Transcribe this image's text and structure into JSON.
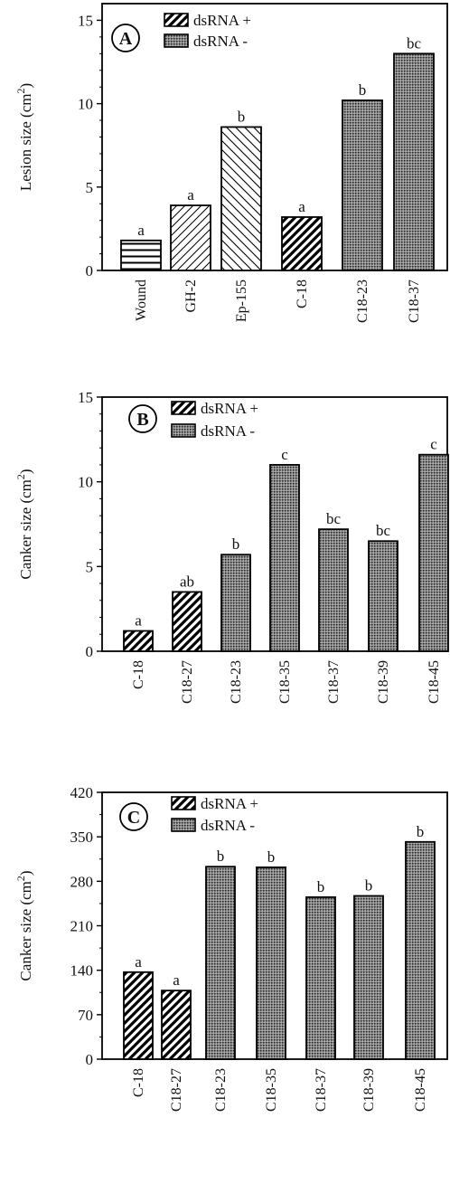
{
  "patterns": {
    "wound": "horizontal-stripes",
    "light_diagonal": "light-diagonal-hatch",
    "back_diagonal": "back-diagonal-hatch",
    "dsrna_plus": "bold-diagonal-hatch",
    "dsrna_minus": "gray-dot-stipple"
  },
  "chart_data": [
    {
      "panel": "A",
      "type": "bar",
      "ylabel": "Lesion size (cm2)",
      "ylim": [
        0,
        16
      ],
      "yticks": [
        0,
        5,
        10,
        15
      ],
      "legend": {
        "placement": "top-left",
        "entries": [
          {
            "label": "dsRNA +",
            "pattern": "dsrna_plus"
          },
          {
            "label": "dsRNA -",
            "pattern": "dsrna_minus"
          }
        ]
      },
      "categories": [
        "Wound",
        "GH-2",
        "Ep-155",
        "C-18",
        "C18-23",
        "C18-37"
      ],
      "values": [
        1.8,
        3.9,
        8.6,
        3.2,
        10.2,
        13.0
      ],
      "labels": [
        "a",
        "a",
        "b",
        "a",
        "b",
        "bc"
      ],
      "patterns": [
        "wound",
        "light_diagonal",
        "back_diagonal",
        "dsrna_plus",
        "dsrna_minus",
        "dsrna_minus"
      ]
    },
    {
      "panel": "B",
      "type": "bar",
      "ylabel": "Canker size  (cm2)",
      "ylim": [
        0,
        15
      ],
      "yticks": [
        0,
        5,
        10,
        15
      ],
      "legend": {
        "placement": "top-left",
        "entries": [
          {
            "label": "dsRNA +",
            "pattern": "dsrna_plus"
          },
          {
            "label": "dsRNA -",
            "pattern": "dsrna_minus"
          }
        ]
      },
      "categories": [
        "C-18",
        "C18-27",
        "C18-23",
        "C18-35",
        "C18-37",
        "C18-39",
        "C18-45"
      ],
      "values": [
        1.2,
        3.5,
        5.7,
        11.0,
        7.2,
        6.5,
        11.6
      ],
      "labels": [
        "a",
        "ab",
        "b",
        "c",
        "bc",
        "bc",
        "c"
      ],
      "patterns": [
        "dsrna_plus",
        "dsrna_plus",
        "dsrna_minus",
        "dsrna_minus",
        "dsrna_minus",
        "dsrna_minus",
        "dsrna_minus"
      ]
    },
    {
      "panel": "C",
      "type": "bar",
      "ylabel": "Canker size  (cm2)",
      "ylim": [
        0,
        420
      ],
      "yticks": [
        0,
        70,
        140,
        210,
        280,
        350,
        420
      ],
      "legend": {
        "placement": "top-left",
        "entries": [
          {
            "label": "dsRNA  +",
            "pattern": "dsrna_plus"
          },
          {
            "label": "dsRNA  -",
            "pattern": "dsrna_minus"
          }
        ]
      },
      "categories": [
        "C-18",
        "C18-27",
        "C18-23",
        "C18-35",
        "C18-37",
        "C18-39",
        "C18-45"
      ],
      "values": [
        137,
        108,
        303,
        302,
        255,
        257,
        342
      ],
      "labels": [
        "a",
        "a",
        "b",
        "b",
        "b",
        "b",
        "b"
      ],
      "patterns": [
        "dsrna_plus",
        "dsrna_plus",
        "dsrna_minus",
        "dsrna_minus",
        "dsrna_minus",
        "dsrna_minus",
        "dsrna_minus"
      ]
    }
  ]
}
